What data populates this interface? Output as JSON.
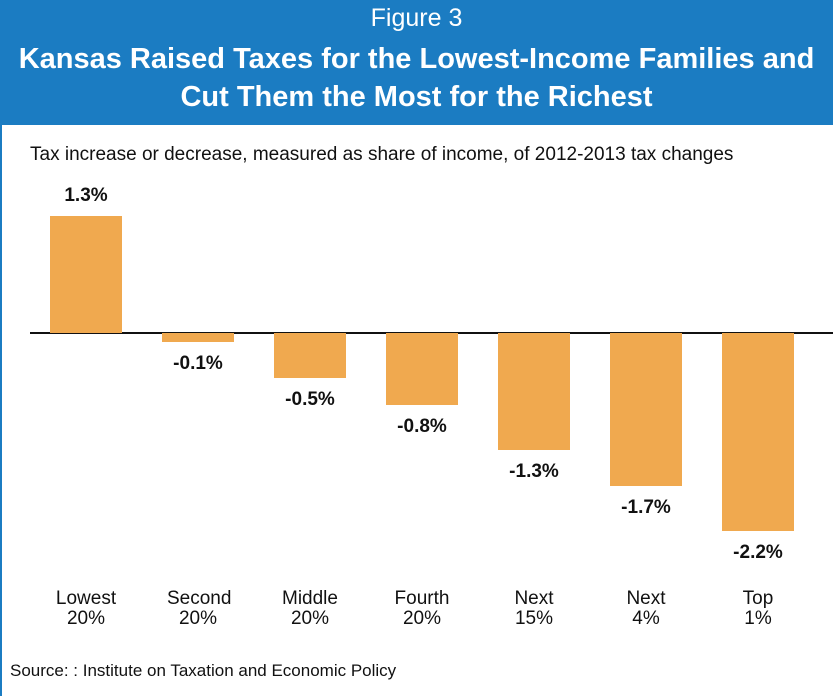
{
  "chart_data": {
    "type": "bar",
    "figure_label": "Figure 3",
    "title": "Kansas Raised Taxes for the Lowest-Income Families and Cut Them the Most for the Richest",
    "subtitle": "Tax increase or decrease, measured as share of income, of 2012-2013 tax changes",
    "categories": [
      "Lowest 20%",
      "Second 20%",
      "Middle 20%",
      "Fourth 20%",
      "Next 15%",
      "Next 4%",
      "Top 1%"
    ],
    "values": [
      1.3,
      -0.1,
      -0.5,
      -0.8,
      -1.3,
      -1.7,
      -2.2
    ],
    "value_labels": [
      "1.3%",
      "-0.1%",
      "-0.5%",
      "-0.8%",
      "-1.3%",
      "-1.7%",
      "-2.2%"
    ],
    "color": "#f0a94f",
    "source": "Source: : Institute on Taxation and Economic Policy"
  }
}
